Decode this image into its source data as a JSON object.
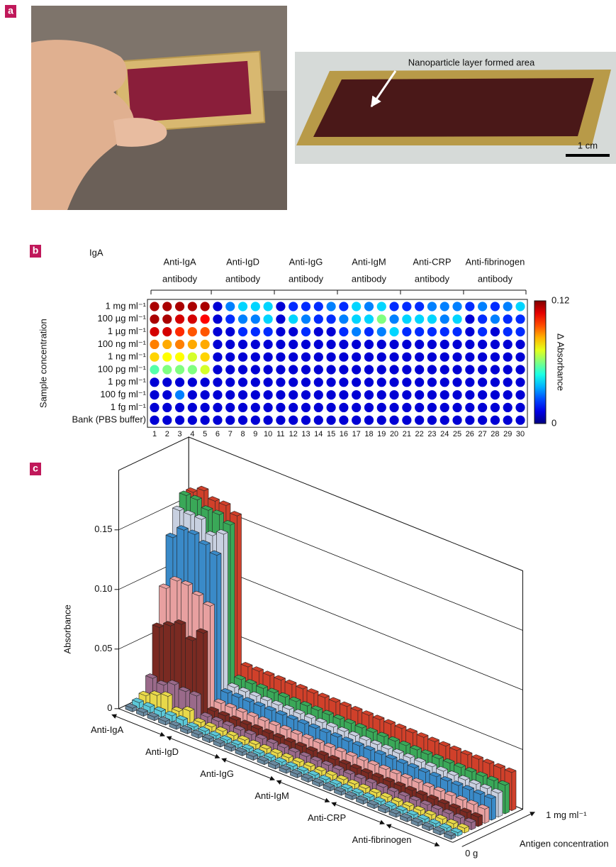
{
  "panel_labels": [
    "a",
    "b",
    "c"
  ],
  "photo_annotations": {
    "arrow_label": "Nanoparticle layer formed area",
    "scale_bar": "1 cm"
  },
  "chart_data": [
    {
      "type": "heatmap",
      "title": "IgA",
      "y_label": "Sample concentration",
      "rows": [
        "1 mg ml⁻¹",
        "100 µg ml⁻¹",
        "1 µg ml⁻¹",
        "100 ng ml⁻¹",
        "1 ng ml⁻¹",
        "100 pg ml⁻¹",
        "1 pg ml⁻¹",
        "100 fg ml⁻¹",
        "1 fg ml⁻¹",
        "Bank (PBS buffer)"
      ],
      "columns": [
        1,
        2,
        3,
        4,
        5,
        6,
        7,
        8,
        9,
        10,
        11,
        12,
        13,
        14,
        15,
        16,
        17,
        18,
        19,
        20,
        21,
        22,
        23,
        24,
        25,
        26,
        27,
        28,
        29,
        30
      ],
      "groups": [
        [
          "Anti-IgA",
          "antibody"
        ],
        [
          "Anti-IgD",
          "antibody"
        ],
        [
          "Anti-IgG",
          "antibody"
        ],
        [
          "Anti-IgM",
          "antibody"
        ],
        [
          "Anti-CRP",
          "antibody"
        ],
        [
          "Anti-fibrinogen",
          "antibody"
        ]
      ],
      "values": [
        [
          0.115,
          0.115,
          0.115,
          0.115,
          0.115,
          0.01,
          0.03,
          0.04,
          0.04,
          0.04,
          0.01,
          0.02,
          0.02,
          0.02,
          0.03,
          0.02,
          0.04,
          0.03,
          0.04,
          0.02,
          0.02,
          0.02,
          0.03,
          0.03,
          0.03,
          0.02,
          0.03,
          0.02,
          0.03,
          0.04
        ],
        [
          0.115,
          0.115,
          0.11,
          0.11,
          0.105,
          0.01,
          0.02,
          0.03,
          0.03,
          0.04,
          0.01,
          0.04,
          0.03,
          0.02,
          0.02,
          0.03,
          0.04,
          0.04,
          0.06,
          0.03,
          0.04,
          0.04,
          0.04,
          0.03,
          0.04,
          0.01,
          0.02,
          0.03,
          0.02,
          0.02
        ],
        [
          0.11,
          0.11,
          0.1,
          0.095,
          0.095,
          0.01,
          0.01,
          0.02,
          0.02,
          0.02,
          0.01,
          0.01,
          0.02,
          0.01,
          0.01,
          0.02,
          0.03,
          0.02,
          0.03,
          0.04,
          0.02,
          0.02,
          0.02,
          0.02,
          0.02,
          0.01,
          0.02,
          0.01,
          0.02,
          0.02
        ],
        [
          0.09,
          0.085,
          0.09,
          0.085,
          0.085,
          0.01,
          0.01,
          0.01,
          0.01,
          0.01,
          0.01,
          0.01,
          0.01,
          0.01,
          0.01,
          0.01,
          0.01,
          0.01,
          0.01,
          0.01,
          0.01,
          0.01,
          0.01,
          0.01,
          0.01,
          0.01,
          0.01,
          0.01,
          0.01,
          0.01
        ],
        [
          0.08,
          0.075,
          0.075,
          0.07,
          0.08,
          0.01,
          0.01,
          0.01,
          0.01,
          0.01,
          0.01,
          0.01,
          0.01,
          0.01,
          0.01,
          0.01,
          0.01,
          0.01,
          0.01,
          0.01,
          0.01,
          0.01,
          0.01,
          0.01,
          0.01,
          0.01,
          0.01,
          0.01,
          0.01,
          0.01
        ],
        [
          0.055,
          0.06,
          0.06,
          0.06,
          0.07,
          0.01,
          0.01,
          0.01,
          0.01,
          0.01,
          0.01,
          0.01,
          0.01,
          0.01,
          0.01,
          0.01,
          0.01,
          0.01,
          0.01,
          0.01,
          0.01,
          0.01,
          0.01,
          0.01,
          0.01,
          0.01,
          0.01,
          0.01,
          0.01,
          0.01
        ],
        [
          0.01,
          0.01,
          0.01,
          0.01,
          0.01,
          0.01,
          0.01,
          0.01,
          0.01,
          0.01,
          0.01,
          0.01,
          0.01,
          0.01,
          0.01,
          0.01,
          0.01,
          0.01,
          0.01,
          0.01,
          0.01,
          0.01,
          0.01,
          0.01,
          0.01,
          0.01,
          0.01,
          0.01,
          0.01,
          0.01
        ],
        [
          0.01,
          0.01,
          0.03,
          0.01,
          0.01,
          0.01,
          0.01,
          0.01,
          0.01,
          0.01,
          0.01,
          0.01,
          0.01,
          0.01,
          0.01,
          0.01,
          0.01,
          0.01,
          0.01,
          0.01,
          0.01,
          0.01,
          0.01,
          0.01,
          0.01,
          0.01,
          0.01,
          0.01,
          0.01,
          0.01
        ],
        [
          0.01,
          0.01,
          0.01,
          0.01,
          0.01,
          0.01,
          0.01,
          0.01,
          0.01,
          0.01,
          0.01,
          0.01,
          0.01,
          0.01,
          0.01,
          0.01,
          0.01,
          0.01,
          0.01,
          0.01,
          0.01,
          0.01,
          0.01,
          0.01,
          0.01,
          0.01,
          0.01,
          0.01,
          0.01,
          0.01
        ],
        [
          0.01,
          0.01,
          0.01,
          0.01,
          0.01,
          0.01,
          0.01,
          0.01,
          0.01,
          0.01,
          0.01,
          0.01,
          0.01,
          0.01,
          0.01,
          0.01,
          0.01,
          0.01,
          0.01,
          0.01,
          0.01,
          0.01,
          0.01,
          0.01,
          0.01,
          0.01,
          0.01,
          0.01,
          0.01,
          0.01
        ]
      ],
      "colorbar": {
        "label": "Δ Absorbance",
        "lim": [
          0,
          0.12
        ],
        "ticks": [
          0,
          0.12
        ]
      }
    },
    {
      "type": "bar3d",
      "y_label": "Absorbance",
      "ylim": [
        0,
        0.2
      ],
      "yticks": [
        0,
        0.05,
        {
          "value": 0.1,
          "label": "0.10"
        },
        0.15
      ],
      "groups": [
        "Anti-IgA",
        "Anti-IgD",
        "Anti-IgG",
        "Anti-IgM",
        "Anti-CRP",
        "Anti-fibrinogen"
      ],
      "depth_label": "Antigen concentration",
      "depth_categories": [
        "0 g",
        null,
        null,
        null,
        null,
        null,
        null,
        null,
        null,
        "1 mg ml⁻¹"
      ],
      "series": [
        {
          "color": "#6a8aa0",
          "values": [
            0.003,
            0.003,
            0.003,
            0.003,
            0.003,
            0.003,
            0.003,
            0.003,
            0.003,
            0.003,
            0.003,
            0.003,
            0.003,
            0.003,
            0.003,
            0.003,
            0.003,
            0.003,
            0.003,
            0.003,
            0.003,
            0.003,
            0.003,
            0.003,
            0.003,
            0.003,
            0.003,
            0.003,
            0.003,
            0.003
          ]
        },
        {
          "color": "#5cc8d8",
          "values": [
            0.005,
            0.005,
            0.005,
            0.005,
            0.005,
            0.003,
            0.003,
            0.003,
            0.003,
            0.003,
            0.003,
            0.003,
            0.003,
            0.003,
            0.003,
            0.003,
            0.003,
            0.003,
            0.003,
            0.003,
            0.003,
            0.003,
            0.003,
            0.003,
            0.003,
            0.003,
            0.003,
            0.003,
            0.003,
            0.003
          ]
        },
        {
          "color": "#e8d84a",
          "values": [
            0.008,
            0.012,
            0.015,
            0.006,
            0.01,
            0.004,
            0.004,
            0.004,
            0.004,
            0.004,
            0.004,
            0.004,
            0.004,
            0.004,
            0.004,
            0.004,
            0.004,
            0.004,
            0.004,
            0.004,
            0.004,
            0.004,
            0.004,
            0.004,
            0.004,
            0.004,
            0.004,
            0.004,
            0.004,
            0.004
          ]
        },
        {
          "color": "#9a6a8a",
          "values": [
            0.02,
            0.018,
            0.022,
            0.02,
            0.02,
            0.006,
            0.006,
            0.006,
            0.006,
            0.006,
            0.006,
            0.006,
            0.006,
            0.006,
            0.006,
            0.006,
            0.006,
            0.006,
            0.006,
            0.006,
            0.006,
            0.006,
            0.006,
            0.006,
            0.006,
            0.006,
            0.006,
            0.006,
            0.006,
            0.006
          ]
        },
        {
          "color": "#7a2a22",
          "values": [
            0.06,
            0.065,
            0.07,
            0.06,
            0.07,
            0.008,
            0.008,
            0.008,
            0.008,
            0.008,
            0.008,
            0.008,
            0.008,
            0.008,
            0.008,
            0.008,
            0.008,
            0.008,
            0.008,
            0.008,
            0.008,
            0.008,
            0.008,
            0.008,
            0.008,
            0.008,
            0.008,
            0.008,
            0.008,
            0.008
          ]
        },
        {
          "color": "#e8a0a0",
          "values": [
            0.09,
            0.1,
            0.1,
            0.095,
            0.09,
            0.012,
            0.012,
            0.012,
            0.012,
            0.012,
            0.012,
            0.012,
            0.012,
            0.012,
            0.012,
            0.012,
            0.012,
            0.012,
            0.012,
            0.012,
            0.012,
            0.012,
            0.012,
            0.012,
            0.012,
            0.012,
            0.012,
            0.012,
            0.012,
            0.012
          ]
        },
        {
          "color": "#3a8ac8",
          "values": [
            0.13,
            0.14,
            0.14,
            0.135,
            0.13,
            0.018,
            0.018,
            0.018,
            0.018,
            0.018,
            0.018,
            0.018,
            0.018,
            0.018,
            0.018,
            0.018,
            0.018,
            0.018,
            0.018,
            0.018,
            0.018,
            0.018,
            0.018,
            0.018,
            0.018,
            0.018,
            0.018,
            0.018,
            0.018,
            0.018
          ]
        },
        {
          "color": "#c8d0e0",
          "values": [
            0.15,
            0.15,
            0.15,
            0.14,
            0.145,
            0.02,
            0.02,
            0.02,
            0.02,
            0.02,
            0.02,
            0.02,
            0.02,
            0.02,
            0.02,
            0.02,
            0.02,
            0.02,
            0.02,
            0.02,
            0.02,
            0.02,
            0.02,
            0.02,
            0.02,
            0.02,
            0.02,
            0.02,
            0.02,
            0.02
          ]
        },
        {
          "color": "#3aa858",
          "values": [
            0.16,
            0.16,
            0.155,
            0.155,
            0.15,
            0.024,
            0.024,
            0.024,
            0.024,
            0.024,
            0.024,
            0.024,
            0.024,
            0.024,
            0.024,
            0.024,
            0.024,
            0.024,
            0.024,
            0.024,
            0.024,
            0.024,
            0.024,
            0.024,
            0.024,
            0.024,
            0.024,
            0.024,
            0.024,
            0.024
          ]
        },
        {
          "color": "#d0402a",
          "values": [
            0.16,
            0.165,
            0.16,
            0.16,
            0.155,
            0.032,
            0.032,
            0.032,
            0.032,
            0.032,
            0.032,
            0.032,
            0.032,
            0.032,
            0.032,
            0.032,
            0.032,
            0.032,
            0.032,
            0.032,
            0.032,
            0.032,
            0.032,
            0.032,
            0.032,
            0.032,
            0.032,
            0.032,
            0.032,
            0.032
          ]
        }
      ]
    }
  ]
}
